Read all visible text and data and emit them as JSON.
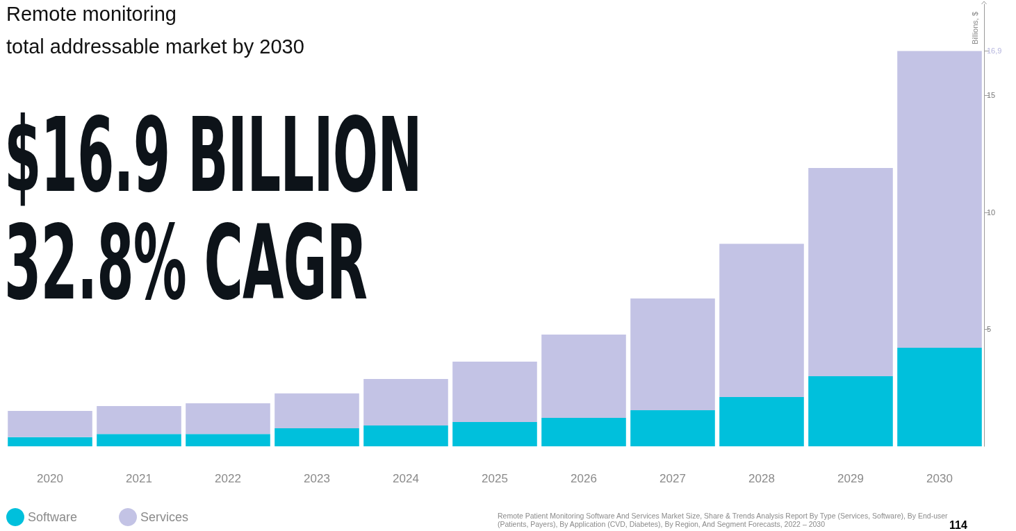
{
  "chart_data": {
    "type": "bar",
    "title": "Remote monitoring",
    "subtitle": "total addressable market by 2030",
    "ylabel": "Billions, $",
    "annotations": [
      "$16.9 BILLION",
      "32.8% CAGR",
      "Remote Patient Monitoring Software And Services Market Size, Share & Trends Analysis Report By Type (Services, Software), By End-user (Patients, Payers), By Application (CVD, Diabetes), By Region, And Segment Forecasts, 2022 – 2030",
      "114"
    ],
    "categories": [
      "2020",
      "2021",
      "2022",
      "2023",
      "2024",
      "2025",
      "2026",
      "2027",
      "2028",
      "2029",
      "2030"
    ],
    "stacked": true,
    "series": [
      {
        "name": "Software",
        "color": "#00c0dc",
        "values": [
          0.39,
          0.53,
          0.53,
          0.77,
          0.89,
          1.04,
          1.22,
          1.54,
          2.11,
          3.0,
          4.21
        ]
      },
      {
        "name": "Services",
        "color": "#c3c3e5",
        "values": [
          1.12,
          1.19,
          1.31,
          1.49,
          1.99,
          2.58,
          3.56,
          4.78,
          6.55,
          8.9,
          12.69
        ]
      }
    ],
    "ylim": [
      0,
      18.9
    ],
    "yticks": [
      5,
      10,
      15,
      {
        "value": 16.9,
        "label": "16,9"
      }
    ],
    "grid": false,
    "legend": "bottom left"
  }
}
